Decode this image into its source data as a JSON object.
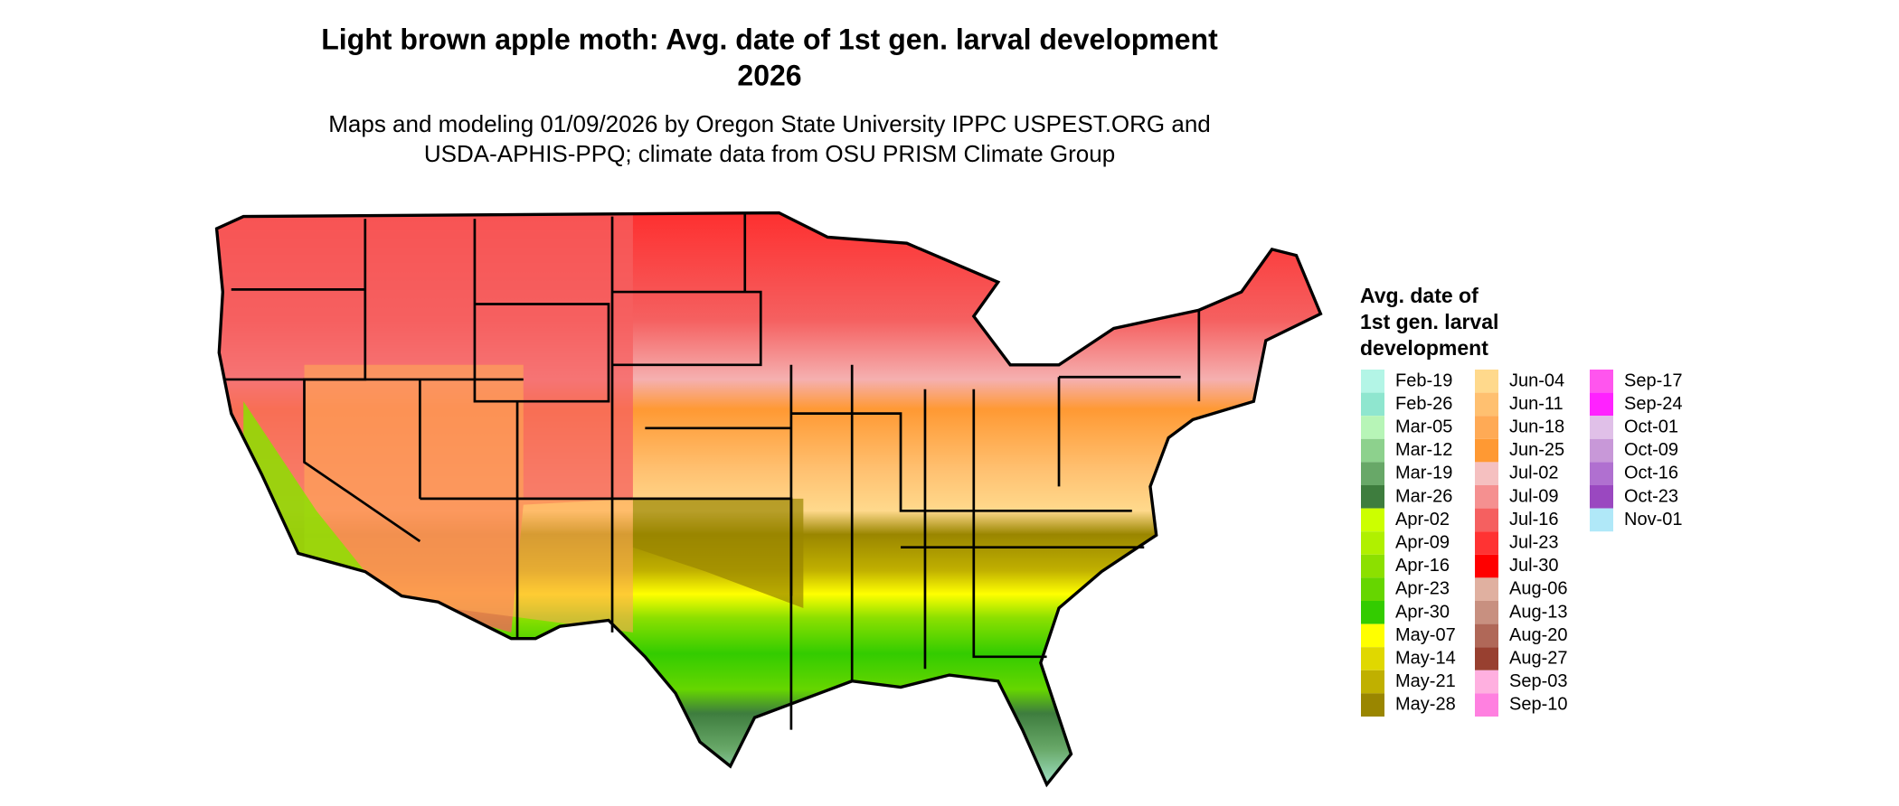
{
  "header": {
    "title_lines": [
      "Light brown apple moth: Avg. date of 1st gen. larval development",
      "2026"
    ],
    "subtitle_lines": [
      "Maps and modeling 01/09/2026 by Oregon State University IPPC USPEST.ORG and",
      "USDA-APHIS-PPQ; climate data from OSU PRISM Climate Group"
    ]
  },
  "legend": {
    "title_lines": [
      "Avg. date of",
      "1st gen. larval",
      "development"
    ],
    "items": [
      {
        "label": "Feb-19",
        "color": "#b3f5e6"
      },
      {
        "label": "Feb-26",
        "color": "#8fe6cf"
      },
      {
        "label": "Mar-05",
        "color": "#b7f5b7"
      },
      {
        "label": "Mar-12",
        "color": "#8dd18d"
      },
      {
        "label": "Mar-19",
        "color": "#68a868"
      },
      {
        "label": "Mar-26",
        "color": "#3e7d3e"
      },
      {
        "label": "Apr-02",
        "color": "#ccff00"
      },
      {
        "label": "Apr-09",
        "color": "#b0f000"
      },
      {
        "label": "Apr-16",
        "color": "#8ce000"
      },
      {
        "label": "Apr-23",
        "color": "#66d600"
      },
      {
        "label": "Apr-30",
        "color": "#33cc00"
      },
      {
        "label": "May-07",
        "color": "#ffff00"
      },
      {
        "label": "May-14",
        "color": "#e0d800"
      },
      {
        "label": "May-21",
        "color": "#c0b000"
      },
      {
        "label": "May-28",
        "color": "#9a8600"
      },
      {
        "label": "Jun-04",
        "color": "#ffd98c"
      },
      {
        "label": "Jun-11",
        "color": "#ffc070"
      },
      {
        "label": "Jun-18",
        "color": "#ffaa55"
      },
      {
        "label": "Jun-25",
        "color": "#ff9933"
      },
      {
        "label": "Jul-02",
        "color": "#f5c0c0"
      },
      {
        "label": "Jul-09",
        "color": "#f59090"
      },
      {
        "label": "Jul-16",
        "color": "#f56060"
      },
      {
        "label": "Jul-23",
        "color": "#ff3333"
      },
      {
        "label": "Jul-30",
        "color": "#ff0000"
      },
      {
        "label": "Aug-06",
        "color": "#e0b0a0"
      },
      {
        "label": "Aug-13",
        "color": "#c89080"
      },
      {
        "label": "Aug-20",
        "color": "#b06858"
      },
      {
        "label": "Aug-27",
        "color": "#984030"
      },
      {
        "label": "Sep-03",
        "color": "#ffb0e0"
      },
      {
        "label": "Sep-10",
        "color": "#ff80e0"
      },
      {
        "label": "Sep-17",
        "color": "#ff55ee"
      },
      {
        "label": "Sep-24",
        "color": "#ff22ff"
      },
      {
        "label": "Oct-01",
        "color": "#e0c0e8"
      },
      {
        "label": "Oct-09",
        "color": "#c898d8"
      },
      {
        "label": "Oct-16",
        "color": "#b070d0"
      },
      {
        "label": "Oct-23",
        "color": "#9a48c0"
      },
      {
        "label": "Nov-01",
        "color": "#b0e8f8"
      }
    ]
  }
}
